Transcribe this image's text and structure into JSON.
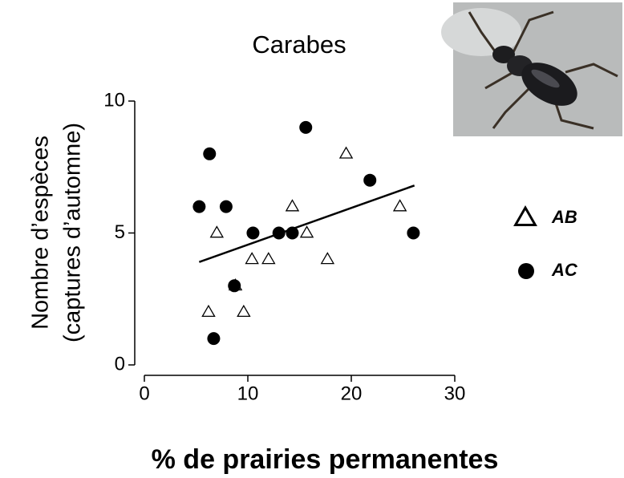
{
  "chart_data": {
    "type": "scatter",
    "title": "Carabes",
    "ylabel": [
      "Nombre d’espèces",
      "(captures d’automne)"
    ],
    "xlabel": "% de prairies permanentes",
    "xlim": [
      0,
      30
    ],
    "xticks": [
      0,
      10,
      20,
      30
    ],
    "ylim": [
      0,
      10
    ],
    "yticks": [
      0,
      5,
      10
    ],
    "series": [
      {
        "name": "AB",
        "marker": "triangle",
        "color": "#000000",
        "x": [
          6.2,
          7.0,
          8.8,
          9.6,
          10.4,
          12.0,
          14.3,
          15.7,
          17.7,
          19.5,
          24.7
        ],
        "values": [
          2,
          5,
          3,
          2,
          4,
          4,
          6,
          5,
          4,
          8,
          6
        ]
      },
      {
        "name": "AC",
        "marker": "circle",
        "color": "#000000",
        "x": [
          5.3,
          6.3,
          7.9,
          6.7,
          8.7,
          10.5,
          13.0,
          14.3,
          15.6,
          21.8,
          26.0
        ],
        "values": [
          6,
          8,
          6,
          1,
          3,
          5,
          5,
          5,
          9,
          7,
          5
        ]
      }
    ],
    "trendline": {
      "x": [
        5.3,
        26.1
      ],
      "values": [
        3.9,
        6.8
      ]
    }
  }
}
